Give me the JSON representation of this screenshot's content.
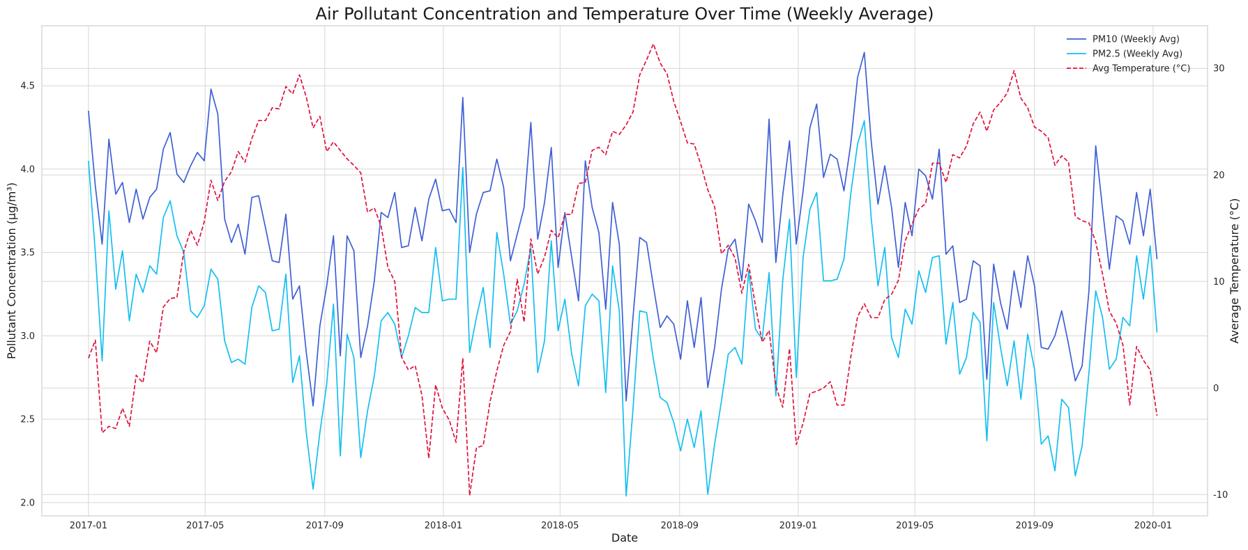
{
  "chart_data": {
    "type": "line",
    "title": "Air Pollutant Concentration and Temperature Over Time (Weekly Average)",
    "xlabel": "Date",
    "ylabel_left": "Pollutant Concentration (µg/m³)",
    "ylabel_right": "Average Temperature (°C)",
    "xlim": [
      "2016-11-14",
      "2020-02-26"
    ],
    "ylim_left": [
      1.92,
      4.86
    ],
    "ylim_right": [
      -12,
      34
    ],
    "x_ticks": [
      "2017-01",
      "2017-05",
      "2017-09",
      "2018-01",
      "2018-05",
      "2018-09",
      "2019-01",
      "2019-05",
      "2019-09",
      "2020-01"
    ],
    "y_ticks_left": [
      "2.0",
      "2.5",
      "3.0",
      "3.5",
      "4.0",
      "4.5"
    ],
    "y_ticks_right": [
      "-10",
      "0",
      "10",
      "20",
      "30"
    ],
    "grid": true,
    "legend_position": "top-right",
    "colors": {
      "pm10": "#3e5fd4",
      "pm25": "#13bff0",
      "temp": "#e0103a",
      "right_axis_label": "#e0103a"
    },
    "start_date": "2017-01-01",
    "step_days": 7,
    "series": [
      {
        "name": "PM10 (Weekly Avg)",
        "axis": "left",
        "style": "solid",
        "values": [
          4.35,
          3.9,
          3.55,
          4.18,
          3.85,
          3.92,
          3.68,
          3.88,
          3.7,
          3.83,
          3.88,
          4.12,
          4.22,
          3.97,
          3.92,
          4.02,
          4.1,
          4.05,
          4.48,
          4.33,
          3.7,
          3.56,
          3.67,
          3.49,
          3.83,
          3.84,
          3.65,
          3.45,
          3.44,
          3.73,
          3.22,
          3.3,
          2.9,
          2.58,
          3.06,
          3.3,
          3.6,
          2.88,
          3.6,
          3.51,
          2.87,
          3.06,
          3.33,
          3.74,
          3.71,
          3.86,
          3.53,
          3.54,
          3.77,
          3.57,
          3.82,
          3.94,
          3.75,
          3.76,
          3.68,
          4.43,
          3.5,
          3.73,
          3.86,
          3.87,
          4.06,
          3.89,
          3.45,
          3.61,
          3.77,
          4.28,
          3.58,
          3.8,
          4.13,
          3.41,
          3.74,
          3.47,
          3.21,
          4.05,
          3.77,
          3.62,
          3.16,
          3.8,
          3.55,
          2.61,
          3.11,
          3.59,
          3.56,
          3.3,
          3.05,
          3.12,
          3.07,
          2.86,
          3.21,
          2.93,
          3.23,
          2.69,
          2.93,
          3.28,
          3.52,
          3.58,
          3.33,
          3.79,
          3.69,
          3.56,
          4.3,
          3.44,
          3.84,
          4.17,
          3.55,
          3.87,
          4.25,
          4.39,
          3.95,
          4.09,
          4.06,
          3.87,
          4.15,
          4.55,
          4.7,
          4.17,
          3.79,
          4.02,
          3.77,
          3.41,
          3.8,
          3.6,
          4.0,
          3.96,
          3.82,
          4.12,
          3.49,
          3.54,
          3.2,
          3.22,
          3.45,
          3.42,
          2.74,
          3.43,
          3.2,
          3.04,
          3.39,
          3.17,
          3.48,
          3.3,
          2.93,
          2.92,
          3.0,
          3.15,
          2.95,
          2.73,
          2.82,
          3.27,
          4.14,
          3.76,
          3.4,
          3.72,
          3.69,
          3.55,
          3.86,
          3.6,
          3.88,
          3.46
        ]
      },
      {
        "name": "PM2.5 (Weekly Avg)",
        "axis": "left",
        "style": "solid",
        "values": [
          4.05,
          3.5,
          2.85,
          3.75,
          3.28,
          3.51,
          3.09,
          3.37,
          3.26,
          3.42,
          3.37,
          3.71,
          3.81,
          3.6,
          3.5,
          3.15,
          3.11,
          3.18,
          3.4,
          3.34,
          2.97,
          2.84,
          2.86,
          2.83,
          3.17,
          3.3,
          3.26,
          3.03,
          3.04,
          3.37,
          2.72,
          2.88,
          2.42,
          2.08,
          2.42,
          2.71,
          3.19,
          2.28,
          3.01,
          2.87,
          2.27,
          2.55,
          2.76,
          3.09,
          3.14,
          3.07,
          2.87,
          3.0,
          3.17,
          3.14,
          3.14,
          3.53,
          3.21,
          3.22,
          3.22,
          4.01,
          2.9,
          3.11,
          3.29,
          2.93,
          3.62,
          3.37,
          3.07,
          3.15,
          3.31,
          3.53,
          2.78,
          2.97,
          3.57,
          3.03,
          3.22,
          2.89,
          2.7,
          3.18,
          3.25,
          3.21,
          2.66,
          3.42,
          3.15,
          2.04,
          2.56,
          3.15,
          3.14,
          2.86,
          2.63,
          2.6,
          2.48,
          2.31,
          2.5,
          2.33,
          2.55,
          2.05,
          2.35,
          2.61,
          2.89,
          2.93,
          2.83,
          3.39,
          3.04,
          2.98,
          3.38,
          2.64,
          3.33,
          3.7,
          2.75,
          3.47,
          3.76,
          3.86,
          3.33,
          3.33,
          3.34,
          3.46,
          3.85,
          4.15,
          4.29,
          3.71,
          3.3,
          3.53,
          2.99,
          2.87,
          3.16,
          3.07,
          3.39,
          3.26,
          3.47,
          3.48,
          2.95,
          3.2,
          2.77,
          2.87,
          3.14,
          3.08,
          2.37,
          3.2,
          2.93,
          2.7,
          2.97,
          2.62,
          3.01,
          2.8,
          2.35,
          2.4,
          2.19,
          2.62,
          2.57,
          2.16,
          2.34,
          2.78,
          3.27,
          3.11,
          2.8,
          2.86,
          3.11,
          3.06,
          3.48,
          3.22,
          3.54,
          3.02
        ]
      },
      {
        "name": "Avg Temperature (°C)",
        "axis": "right",
        "style": "dashed",
        "values": [
          2.8,
          4.5,
          -4.2,
          -3.6,
          -3.8,
          -1.9,
          -3.6,
          1.2,
          0.5,
          4.4,
          3.3,
          7.6,
          8.4,
          8.5,
          12.8,
          14.8,
          13.4,
          15.6,
          19.5,
          17.6,
          19.4,
          20.3,
          22.2,
          21.2,
          23.4,
          25.1,
          25.1,
          26.3,
          26.2,
          28.3,
          27.6,
          29.4,
          27.3,
          24.4,
          25.5,
          22.2,
          23.1,
          22.3,
          21.5,
          20.9,
          20.2,
          16.5,
          16.9,
          15.2,
          11.3,
          10.0,
          2.9,
          1.7,
          2.1,
          -0.7,
          -6.6,
          0.3,
          -1.9,
          -3.0,
          -5.1,
          2.8,
          -10.1,
          -5.6,
          -5.4,
          -1.3,
          1.6,
          4.0,
          5.3,
          10.2,
          6.2,
          14.0,
          10.7,
          12.3,
          14.8,
          14.1,
          16.3,
          16.3,
          19.2,
          19.3,
          22.3,
          22.6,
          21.9,
          24.1,
          23.8,
          24.7,
          25.9,
          29.4,
          30.8,
          32.3,
          30.5,
          29.5,
          26.9,
          25.0,
          23.0,
          22.9,
          20.9,
          18.6,
          17.0,
          12.6,
          13.4,
          12.2,
          8.9,
          11.6,
          7.7,
          4.3,
          5.4,
          0.2,
          -1.8,
          3.7,
          -5.3,
          -3.3,
          -0.5,
          -0.3,
          0.0,
          0.6,
          -1.6,
          -1.6,
          2.9,
          6.7,
          7.9,
          6.6,
          6.6,
          8.3,
          8.8,
          10.1,
          13.8,
          15.4,
          16.8,
          17.3,
          21.1,
          21.1,
          19.3,
          21.9,
          21.6,
          22.7,
          24.8,
          25.9,
          24.1,
          26.1,
          26.8,
          27.7,
          29.8,
          27.2,
          26.3,
          24.5,
          24.1,
          23.5,
          20.9,
          21.8,
          21.2,
          16.1,
          15.7,
          15.5,
          13.7,
          10.7,
          7.2,
          6.1,
          4.0,
          -1.6,
          3.9,
          2.6,
          1.7,
          -2.6
        ]
      }
    ]
  }
}
